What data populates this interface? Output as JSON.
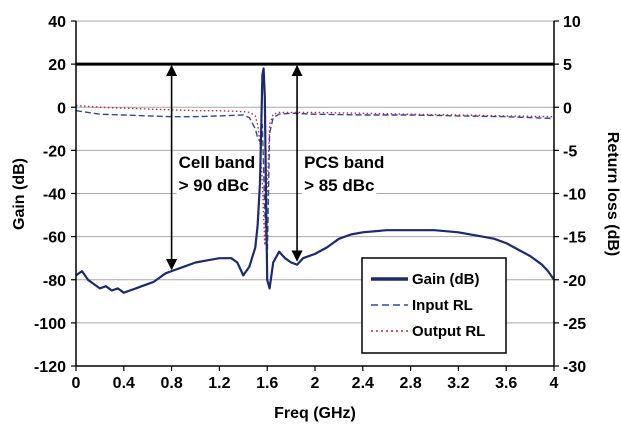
{
  "chart_data": {
    "type": "line",
    "xlabel": "Freq (GHz)",
    "ylabel": "Gain (dB)",
    "y2label": "Return loss (dB)",
    "xlim": [
      0,
      4
    ],
    "ylim": [
      -120,
      40
    ],
    "y2lim": [
      -30,
      10
    ],
    "x_ticks": [
      "0",
      "0.4",
      "0.8",
      "1.2",
      "1.6",
      "2",
      "2.4",
      "2.8",
      "3.2",
      "3.6",
      "4"
    ],
    "y_ticks": [
      "40",
      "20",
      "0",
      "-20",
      "-40",
      "-60",
      "-80",
      "-100",
      "-120"
    ],
    "y2_ticks": [
      "10",
      "5",
      "0",
      "-5",
      "-10",
      "-15",
      "-20",
      "-25",
      "-30"
    ],
    "grid": "horizontal",
    "legend_position": "bottom-right",
    "series": [
      {
        "name": "Gain (dB)",
        "axis": "left",
        "color": "#1c2a6e",
        "style": "solid",
        "x": [
          0.0,
          0.05,
          0.1,
          0.15,
          0.2,
          0.25,
          0.3,
          0.35,
          0.4,
          0.45,
          0.5,
          0.55,
          0.6,
          0.65,
          0.7,
          0.75,
          0.8,
          0.9,
          1.0,
          1.1,
          1.2,
          1.3,
          1.35,
          1.4,
          1.45,
          1.5,
          1.52,
          1.54,
          1.55,
          1.56,
          1.57,
          1.58,
          1.59,
          1.6,
          1.62,
          1.65,
          1.7,
          1.75,
          1.8,
          1.85,
          1.9,
          2.0,
          2.1,
          2.2,
          2.3,
          2.4,
          2.6,
          2.8,
          3.0,
          3.2,
          3.4,
          3.5,
          3.6,
          3.7,
          3.8,
          3.9,
          3.95,
          4.0
        ],
        "y": [
          -78,
          -76,
          -80,
          -82,
          -84,
          -83,
          -85,
          -84,
          -86,
          -85,
          -84,
          -83,
          -82,
          -81,
          -79,
          -77,
          -76,
          -74,
          -72,
          -71,
          -70,
          -70,
          -72,
          -78,
          -74,
          -65,
          -55,
          -35,
          -10,
          15,
          18,
          5,
          -40,
          -80,
          -84,
          -72,
          -67,
          -70,
          -72,
          -73,
          -70,
          -68,
          -65,
          -61,
          -59,
          -58,
          -57,
          -57,
          -57,
          -58,
          -60,
          -61,
          -63,
          -66,
          -69,
          -73,
          -76,
          -80
        ]
      },
      {
        "name": "Input RL",
        "axis": "right",
        "color": "#2b4ba0",
        "style": "dashed",
        "x": [
          0.0,
          0.1,
          0.2,
          0.4,
          0.6,
          0.8,
          1.0,
          1.2,
          1.4,
          1.45,
          1.5,
          1.52,
          1.54,
          1.56,
          1.58,
          1.6,
          1.62,
          1.65,
          1.7,
          1.8,
          2.0,
          2.4,
          2.8,
          3.2,
          3.6,
          4.0
        ],
        "y": [
          -0.4,
          -0.6,
          -0.8,
          -0.9,
          -1.0,
          -1.1,
          -1.1,
          -1.0,
          -0.9,
          -1.2,
          -2.5,
          -3.5,
          -4.0,
          -2.0,
          -12.0,
          -18.0,
          -3.0,
          -1.2,
          -0.8,
          -0.7,
          -0.8,
          -0.9,
          -0.9,
          -1.0,
          -1.1,
          -1.3
        ]
      },
      {
        "name": "Output RL",
        "axis": "right",
        "color": "#c0273a",
        "style": "dotted",
        "x": [
          0.0,
          0.1,
          0.2,
          0.4,
          0.6,
          0.8,
          1.0,
          1.2,
          1.4,
          1.45,
          1.5,
          1.52,
          1.54,
          1.56,
          1.58,
          1.6,
          1.62,
          1.65,
          1.7,
          1.8,
          2.0,
          2.4,
          2.8,
          3.2,
          3.6,
          4.0
        ],
        "y": [
          0.2,
          0.1,
          0.0,
          -0.1,
          -0.2,
          -0.3,
          -0.4,
          -0.4,
          -0.5,
          -0.6,
          -1.0,
          -2.0,
          -4.0,
          -9.0,
          -16.0,
          -10.0,
          -2.0,
          -0.8,
          -0.6,
          -0.6,
          -0.6,
          -0.7,
          -0.8,
          -0.9,
          -1.0,
          -1.1
        ]
      }
    ],
    "reference_line": {
      "y": 20,
      "axis": "left"
    },
    "annotations": [
      {
        "lines": [
          "Cell band",
          "> 90 dBc"
        ],
        "arrow_x": 0.8,
        "arrow_from": 20,
        "arrow_to": -76
      },
      {
        "lines": [
          "PCS band",
          "> 85 dBc"
        ],
        "arrow_x": 1.85,
        "arrow_from": 20,
        "arrow_to": -72
      }
    ]
  }
}
